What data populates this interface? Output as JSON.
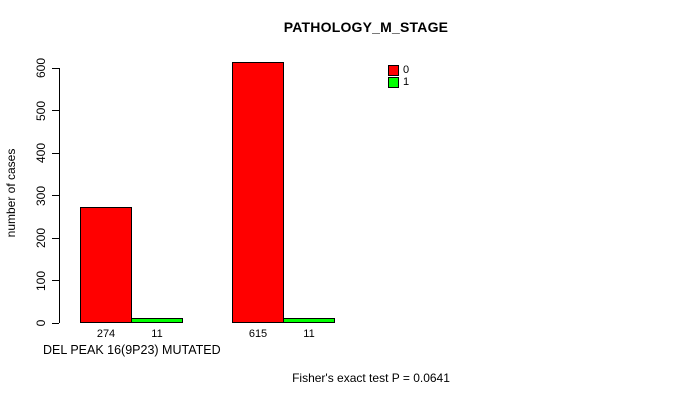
{
  "title": "PATHOLOGY_M_STAGE",
  "chart_data": {
    "type": "bar",
    "title": "PATHOLOGY_M_STAGE",
    "ylabel": "number of cases",
    "xlabel": "DEL PEAK 16(9P23) MUTATED",
    "annotation": "Fisher's exact test P = 0.0641",
    "ylim": [
      0,
      600
    ],
    "yticks": [
      0,
      100,
      200,
      300,
      400,
      500,
      600
    ],
    "grid": false,
    "legend_position": "top-right",
    "series": [
      {
        "name": "0",
        "color": "#ff0000"
      },
      {
        "name": "1",
        "color": "#00ff00"
      }
    ],
    "groups": [
      {
        "values": [
          274,
          11
        ],
        "bar_labels": [
          "274",
          "11"
        ]
      },
      {
        "values": [
          615,
          11
        ],
        "bar_labels": [
          "615",
          "11"
        ]
      }
    ]
  }
}
